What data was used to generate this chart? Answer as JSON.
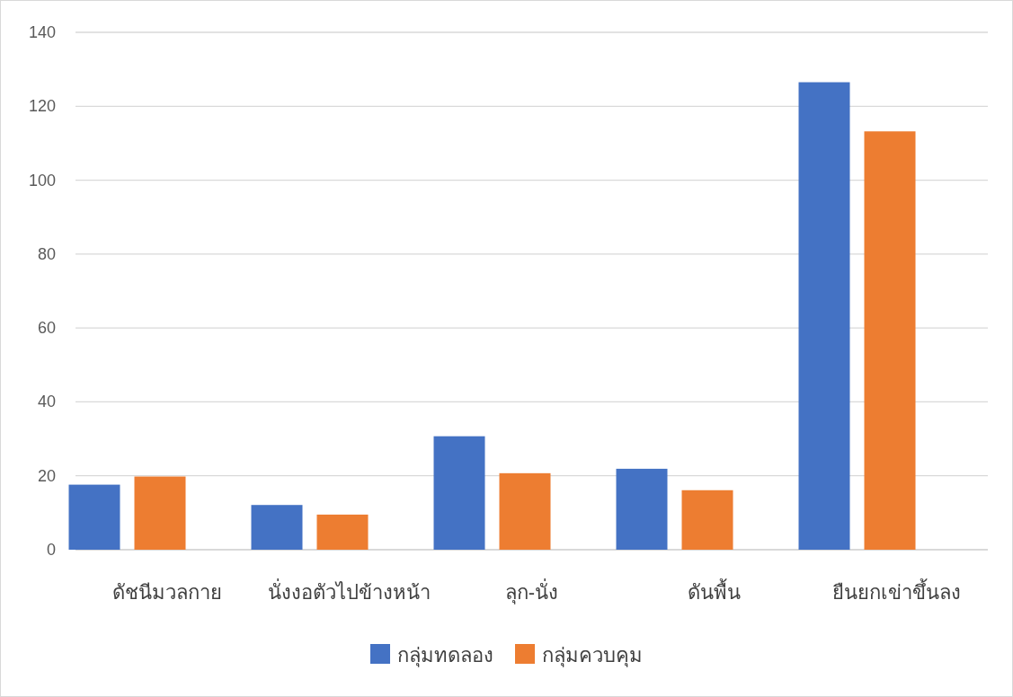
{
  "chart_data": {
    "type": "bar",
    "categories": [
      "ดัชนีมวลกาย",
      "นั่งงอตัวไปข้างหน้า",
      "ลุก-นั่ง",
      "ดันพื้น",
      "ยืนยกเข่าขึ้นลง"
    ],
    "series": [
      {
        "name": "กลุ่มทดลอง",
        "color": "#4472c4",
        "values": [
          17.6,
          12.1,
          30.7,
          21.9,
          126.5
        ]
      },
      {
        "name": "กลุ่มควบคุม",
        "color": "#ed7d31",
        "values": [
          19.8,
          9.5,
          20.7,
          16.1,
          113.2
        ]
      }
    ],
    "ylim": [
      0,
      140
    ],
    "yticks": [
      0,
      20,
      40,
      60,
      80,
      100,
      120,
      140
    ],
    "grid": "y",
    "legend": "bottom"
  }
}
